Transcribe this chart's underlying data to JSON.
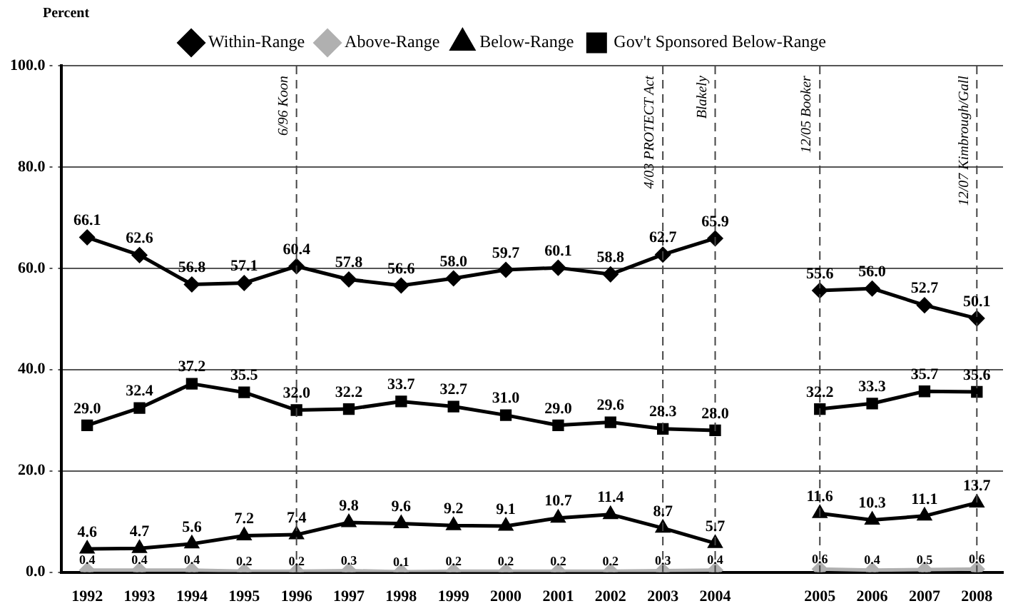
{
  "chart_data": {
    "type": "line",
    "ylabel": "Percent",
    "categories": [
      "1992",
      "1993",
      "1994",
      "1995",
      "1996",
      "1997",
      "1998",
      "1999",
      "2000",
      "2001",
      "2002",
      "2003",
      "2004",
      null,
      "2005",
      "2006",
      "2007",
      "2008"
    ],
    "series": [
      {
        "name": "Within-Range",
        "color": "#000000",
        "marker": "diamond",
        "values": [
          66.1,
          62.6,
          56.8,
          57.1,
          60.4,
          57.8,
          56.6,
          58.0,
          59.7,
          60.1,
          58.8,
          62.7,
          65.9,
          null,
          55.6,
          56.0,
          52.7,
          50.1
        ],
        "value_labels": [
          "66.1",
          "62.6",
          "56.8",
          "57.1",
          "60.4",
          "57.8",
          "56.6",
          "58.0",
          "59.7",
          "60.1",
          "58.8",
          "62.7",
          "65.9",
          null,
          "55.6",
          "56.0",
          "52.7",
          "50.1"
        ]
      },
      {
        "name": "Above-Range",
        "color": "#b0b0b0",
        "marker": "diamond",
        "values": [
          0.4,
          0.4,
          0.4,
          0.2,
          0.2,
          0.3,
          0.1,
          0.2,
          0.2,
          0.2,
          0.2,
          0.3,
          0.4,
          null,
          0.6,
          0.4,
          0.5,
          0.6
        ],
        "value_labels": [
          "0.4",
          "0.4",
          "0.4",
          "0.2",
          "0.2",
          "0.3",
          "0.1",
          "0.2",
          "0.2",
          "0.2",
          "0.2",
          "0.3",
          "0.4",
          null,
          "0.6",
          "0.4",
          "0.5",
          "0.6"
        ]
      },
      {
        "name": "Below-Range",
        "color": "#000000",
        "marker": "triangle",
        "values": [
          4.6,
          4.7,
          5.6,
          7.2,
          7.4,
          9.8,
          9.6,
          9.2,
          9.1,
          10.7,
          11.4,
          8.7,
          5.7,
          null,
          11.6,
          10.3,
          11.1,
          13.7
        ],
        "value_labels": [
          "4.6",
          "4.7",
          "5.6",
          "7.2",
          "7.4",
          "9.8",
          "9.6",
          "9.2",
          "9.1",
          "10.7",
          "11.4",
          "8.7",
          "5.7",
          null,
          "11.6",
          "10.3",
          "11.1",
          "13.7"
        ]
      },
      {
        "name": "Gov't Sponsored Below-Range",
        "color": "#000000",
        "marker": "square",
        "values": [
          29.0,
          32.4,
          37.2,
          35.5,
          32.0,
          32.2,
          33.7,
          32.7,
          31.0,
          29.0,
          29.6,
          28.3,
          28.0,
          null,
          32.2,
          33.3,
          35.7,
          35.6
        ],
        "value_labels": [
          "29.0",
          "32.4",
          "37.2",
          "35.5",
          "32.0",
          "32.2",
          "33.7",
          "32.7",
          "31.0",
          "29.0",
          "29.6",
          "28.3",
          "28.0",
          null,
          "32.2",
          "33.3",
          "35.7",
          "35.6"
        ]
      }
    ],
    "ylim": [
      0,
      100
    ],
    "yticks": [
      {
        "value": 0,
        "label": "0.0"
      },
      {
        "value": 20,
        "label": "20.0"
      },
      {
        "value": 40,
        "label": "40.0"
      },
      {
        "value": 60,
        "label": "60.0"
      },
      {
        "value": 80,
        "label": "80.0"
      },
      {
        "value": 100,
        "label": "100.0"
      }
    ],
    "grid": "y",
    "legend": "top",
    "line_style": "solid",
    "ref_lines": [
      {
        "axis": "x",
        "value": "1996",
        "label": "6/96 Koon",
        "line_style": "dashed"
      },
      {
        "axis": "x",
        "value": "2003",
        "label": "4/03 PROTECT Act",
        "line_style": "dashed"
      },
      {
        "axis": "x",
        "value": "2004",
        "label": "Blakely",
        "line_style": "dashed"
      },
      {
        "axis": "x",
        "value": "2005",
        "label": "12/05 Booker",
        "line_style": "dashed"
      },
      {
        "axis": "x",
        "value": "2008",
        "label": "12/07 Kimbrough/Gall",
        "line_style": "dashed"
      }
    ]
  }
}
